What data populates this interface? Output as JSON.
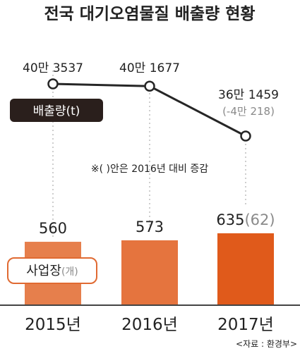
{
  "chart_data": {
    "type": "bar+line",
    "title": "전국 대기오염물질 배출량 현황",
    "categories": [
      "2015년",
      "2016년",
      "2017년"
    ],
    "line_series": {
      "name": "배출량(t)",
      "values": [
        403537,
        401677,
        361459
      ],
      "labels": [
        "40만 3537",
        "40만 1677",
        "36만 1459"
      ],
      "change_label": "(-4만 218)"
    },
    "bar_series": {
      "name": "사업장",
      "unit": "(개)",
      "values": [
        560,
        573,
        635
      ],
      "labels": [
        "560",
        "573",
        "635"
      ],
      "change_label": "(62)"
    },
    "note": "※(   )안은 2016년 대비 증감",
    "source": "<자료 : 환경부>",
    "colors": {
      "bar_2015": "#e67f4c",
      "bar_2016": "#e5743e",
      "bar_2017": "#e05a1b",
      "line": "#262626",
      "emission_badge": "#2a1f1c",
      "business_badge_border": "#e06a32",
      "change_text": "#8a8a8a",
      "axis": "#444444"
    }
  }
}
